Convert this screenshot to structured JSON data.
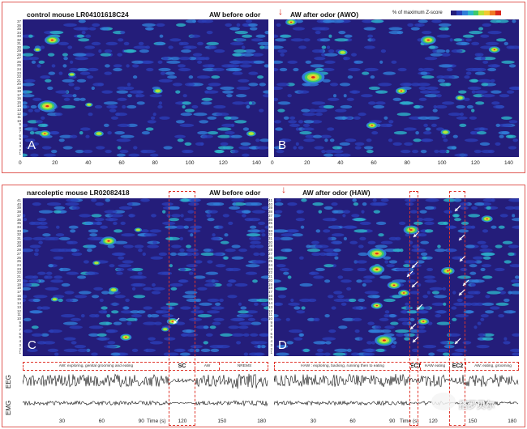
{
  "panels": {
    "A": {
      "title_left": "control mouse LR04101618C24",
      "title_right": "AW before odor",
      "label": "A",
      "x_ticks": [
        "0",
        "20",
        "40",
        "60",
        "80",
        "100",
        "120",
        "140"
      ]
    },
    "B": {
      "title_left": "AW after odor (AWO)",
      "label": "B",
      "x_ticks": [
        "0",
        "20",
        "40",
        "60",
        "80",
        "100",
        "120",
        "140"
      ],
      "legend_label": "% of maximum Z-score"
    },
    "C": {
      "title_left": "narcoleptic mouse LR02082418",
      "title_right": "AW before odor",
      "label": "C",
      "behaviors": [
        "AW: exploring, genital grooming and eating",
        "SC",
        "AW",
        "NREMS"
      ]
    },
    "D": {
      "title_left": "AW after odor (HAW)",
      "label": "D",
      "behaviors": [
        "HAW : exploring, backing, running then to eating",
        "EC1",
        "HAW eating",
        "EC2",
        "AW: eating, grooming"
      ]
    }
  },
  "y_ticks_top": [
    "37",
    "36",
    "35",
    "34",
    "33",
    "32",
    "31",
    "30",
    "29",
    "28",
    "27",
    "26",
    "25",
    "24",
    "23",
    "22",
    "21",
    "20",
    "19",
    "18",
    "17",
    "16",
    "15",
    "14",
    "13",
    "12",
    "11",
    "10",
    "9",
    "8",
    "7",
    "6",
    "5",
    "4",
    "3",
    "2",
    "1"
  ],
  "y_ticks_bottom": [
    "41",
    "40",
    "39",
    "38",
    "37",
    "36",
    "35",
    "34",
    "33",
    "32",
    "31",
    "30",
    "29",
    "28",
    "27",
    "26",
    "25",
    "24",
    "23",
    "22",
    "21",
    "20",
    "19",
    "18",
    "17",
    "16",
    "15",
    "14",
    "13",
    "12",
    "11",
    "10",
    "9",
    "8",
    "7",
    "6",
    "5",
    "4",
    "3",
    "2",
    "1"
  ],
  "traces": {
    "eeg_label": "EEG",
    "emg_label": "EMG",
    "time_ticks_left": [
      "30",
      "60",
      "90",
      "120",
      "150",
      "180"
    ],
    "time_ticks_right": [
      "30",
      "60",
      "90",
      "120",
      "150",
      "180"
    ],
    "time_axis_label": "Time (s)"
  },
  "watermark": "搭罗贝尔",
  "colors": {
    "heatmap_bg": "#241d7a",
    "frame": "#e05a55",
    "dash": "#e0352b",
    "arrow": "#d9261c"
  },
  "chart_data": [
    {
      "type": "heatmap",
      "panel": "A",
      "title": "control mouse LR04101618C24 — AW before odor",
      "xlim": [
        0,
        145
      ],
      "ylim": [
        1,
        37
      ]
    },
    {
      "type": "heatmap",
      "panel": "B",
      "title": "AW after odor (AWO)",
      "xlim": [
        0,
        145
      ],
      "ylim": [
        1,
        37
      ]
    },
    {
      "type": "heatmap",
      "panel": "C",
      "title": "narcoleptic mouse LR02082418 — AW before odor",
      "ylim": [
        1,
        41
      ]
    },
    {
      "type": "heatmap",
      "panel": "D",
      "title": "AW after odor (HAW)",
      "ylim": [
        1,
        41
      ]
    }
  ]
}
